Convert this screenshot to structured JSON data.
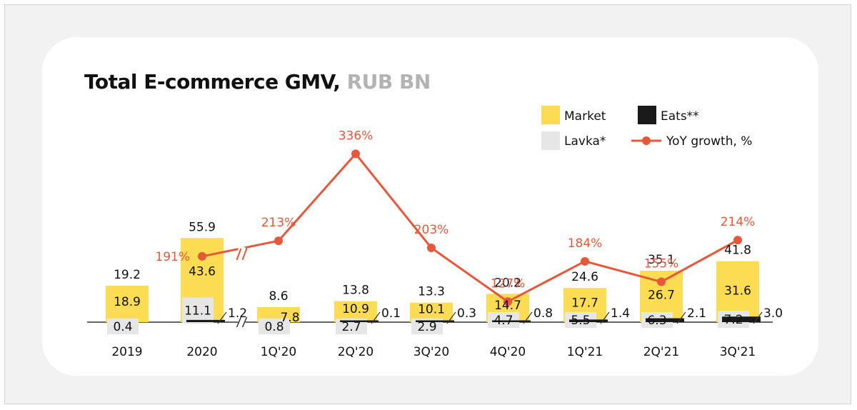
{
  "chart_data": {
    "type": "bar",
    "title": "Total E-commerce GMV,",
    "unit": "RUB BN",
    "categories": [
      "2019",
      "2020",
      "1Q'20",
      "2Q'20",
      "3Q'20",
      "4Q'20",
      "1Q'21",
      "2Q'21",
      "3Q'21"
    ],
    "series": [
      {
        "name": "Market",
        "color": "#fcdc53",
        "values": [
          18.9,
          43.6,
          7.8,
          10.9,
          10.1,
          14.7,
          17.7,
          26.7,
          31.6
        ]
      },
      {
        "name": "Lavka*",
        "color": "#e6e6e6",
        "values": [
          0.4,
          11.1,
          0.8,
          2.7,
          2.9,
          4.7,
          5.5,
          6.3,
          7.2
        ]
      },
      {
        "name": "Eats**",
        "color": "#1a1a1a",
        "values": [
          null,
          1.2,
          null,
          0.1,
          0.3,
          0.8,
          1.4,
          2.1,
          3.0
        ]
      }
    ],
    "totals": [
      19.2,
      55.9,
      8.6,
      13.8,
      13.3,
      20.2,
      24.6,
      35.1,
      41.8
    ],
    "line": {
      "name": "YoY growth, %",
      "color": "#e8573a",
      "values": [
        null,
        191,
        213,
        336,
        203,
        127,
        184,
        155,
        214
      ],
      "labels": [
        "",
        "191%",
        "213%",
        "336%",
        "203%",
        "127%",
        "184%",
        "155%",
        "214%"
      ]
    },
    "axis_break_between": [
      "2020",
      "1Q'20"
    ],
    "legend_position": "top-right",
    "grid": false
  }
}
